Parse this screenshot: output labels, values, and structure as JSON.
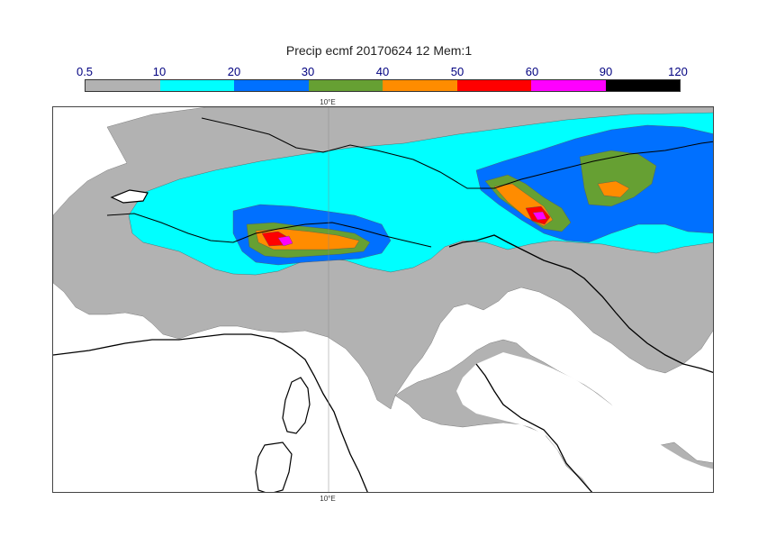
{
  "title": "Precip ecmf 20170624 12 Mem:1",
  "colorbar": {
    "labels": [
      "0.5",
      "10",
      "20",
      "30",
      "40",
      "50",
      "60",
      "90",
      "120"
    ],
    "colors": [
      "#b2b2b2",
      "#00ffff",
      "#0070ff",
      "#66a033",
      "#ff8c00",
      "#ff0000",
      "#ff00ff",
      "#000000"
    ],
    "label_color": "#000080"
  },
  "map": {
    "meridian_label": "10°E",
    "coastline_color": "#000000",
    "sea_color": "#ffffff"
  }
}
